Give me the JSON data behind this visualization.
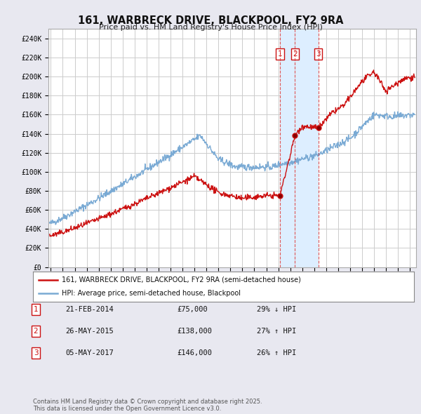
{
  "title": "161, WARBRECK DRIVE, BLACKPOOL, FY2 9RA",
  "subtitle": "Price paid vs. HM Land Registry's House Price Index (HPI)",
  "ylim": [
    0,
    250000
  ],
  "yticks": [
    0,
    20000,
    40000,
    60000,
    80000,
    100000,
    120000,
    140000,
    160000,
    180000,
    200000,
    220000,
    240000
  ],
  "ytick_labels": [
    "£0",
    "£20K",
    "£40K",
    "£60K",
    "£80K",
    "£100K",
    "£120K",
    "£140K",
    "£160K",
    "£180K",
    "£200K",
    "£220K",
    "£240K"
  ],
  "xlim_start": 1994.8,
  "xlim_end": 2025.5,
  "hpi_color": "#7aaad4",
  "price_color": "#cc1111",
  "vline_color": "#dd4444",
  "shade_color": "#ddeeff",
  "background_color": "#e8e8f0",
  "plot_bg_color": "#ffffff",
  "grid_color": "#cccccc",
  "transactions": [
    {
      "num": 1,
      "date": "21-FEB-2014",
      "year": 2014.13,
      "price": 75000,
      "pct": "29%",
      "dir": "↓",
      "label": "29% ↓ HPI"
    },
    {
      "num": 2,
      "date": "26-MAY-2015",
      "year": 2015.4,
      "price": 138000,
      "pct": "27%",
      "dir": "↑",
      "label": "27% ↑ HPI"
    },
    {
      "num": 3,
      "date": "05-MAY-2017",
      "year": 2017.34,
      "price": 146000,
      "pct": "26%",
      "dir": "↑",
      "label": "26% ↑ HPI"
    }
  ],
  "legend_line1": "161, WARBRECK DRIVE, BLACKPOOL, FY2 9RA (semi-detached house)",
  "legend_line2": "HPI: Average price, semi-detached house, Blackpool",
  "footer": "Contains HM Land Registry data © Crown copyright and database right 2025.\nThis data is licensed under the Open Government Licence v3.0.",
  "table_rows": [
    [
      "1",
      "21-FEB-2014",
      "£75,000",
      "29% ↓ HPI"
    ],
    [
      "2",
      "26-MAY-2015",
      "£138,000",
      "27% ↑ HPI"
    ],
    [
      "3",
      "05-MAY-2017",
      "£146,000",
      "26% ↑ HPI"
    ]
  ]
}
